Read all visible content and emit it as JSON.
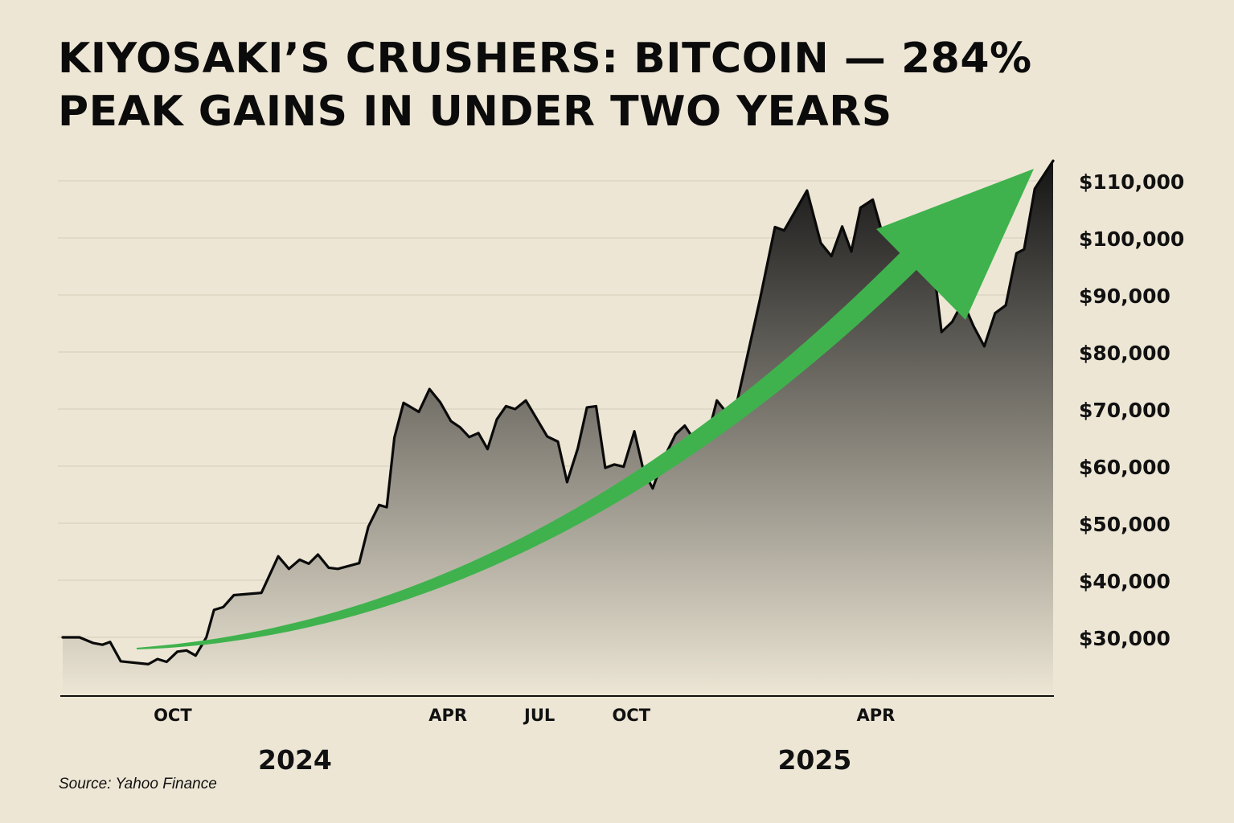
{
  "page": {
    "title_lines": [
      "KIYOSAKI’S CRUSHERS: BITCOIN — 284%",
      "PEAK GAINS IN UNDER TWO YEARS"
    ],
    "source": "Source: Yahoo Finance"
  },
  "colors": {
    "background": "#ede6d5",
    "line": "#0a0a0a",
    "area_top": "#141414",
    "area_bottom": "#ede6d5",
    "arrow": "#3fb24d",
    "gridline": "#d9d1bd"
  },
  "chart_data": {
    "type": "area",
    "title": "KIYOSAKI’S CRUSHERS: BITCOIN — 284% PEAK GAINS IN UNDER TWO YEARS",
    "series": [
      {
        "values": [
          [
            0.0,
            30000
          ],
          [
            0.55,
            30000
          ],
          [
            1.0,
            29000
          ],
          [
            1.3,
            28700
          ],
          [
            1.55,
            29200
          ],
          [
            1.9,
            25800
          ],
          [
            2.8,
            25300
          ],
          [
            3.1,
            26200
          ],
          [
            3.4,
            25700
          ],
          [
            3.75,
            27500
          ],
          [
            4.05,
            27700
          ],
          [
            4.35,
            26800
          ],
          [
            4.7,
            30000
          ],
          [
            4.95,
            34800
          ],
          [
            5.25,
            35300
          ],
          [
            5.6,
            37400
          ],
          [
            6.5,
            37800
          ],
          [
            7.05,
            44200
          ],
          [
            7.4,
            42000
          ],
          [
            7.75,
            43600
          ],
          [
            8.05,
            42900
          ],
          [
            8.35,
            44500
          ],
          [
            8.7,
            42200
          ],
          [
            9.0,
            42000
          ],
          [
            9.7,
            43000
          ],
          [
            10.0,
            49400
          ],
          [
            10.35,
            53200
          ],
          [
            10.6,
            52800
          ],
          [
            10.85,
            65000
          ],
          [
            11.15,
            71100
          ],
          [
            11.65,
            69500
          ],
          [
            12.0,
            73500
          ],
          [
            12.35,
            71200
          ],
          [
            12.7,
            67900
          ],
          [
            13.0,
            66800
          ],
          [
            13.3,
            65100
          ],
          [
            13.6,
            65800
          ],
          [
            13.9,
            63000
          ],
          [
            14.2,
            68200
          ],
          [
            14.5,
            70500
          ],
          [
            14.8,
            70000
          ],
          [
            15.15,
            71500
          ],
          [
            15.85,
            65200
          ],
          [
            16.2,
            64300
          ],
          [
            16.5,
            57200
          ],
          [
            16.85,
            63100
          ],
          [
            17.15,
            70300
          ],
          [
            17.45,
            70500
          ],
          [
            17.75,
            59700
          ],
          [
            18.05,
            60300
          ],
          [
            18.35,
            59900
          ],
          [
            18.7,
            66100
          ],
          [
            19.0,
            59200
          ],
          [
            19.3,
            56100
          ],
          [
            19.65,
            61200
          ],
          [
            20.05,
            65600
          ],
          [
            20.35,
            67100
          ],
          [
            20.7,
            64300
          ],
          [
            21.05,
            64200
          ],
          [
            21.4,
            71500
          ],
          [
            21.7,
            69500
          ],
          [
            22.05,
            71000
          ],
          [
            22.8,
            89000
          ],
          [
            23.3,
            101900
          ],
          [
            23.6,
            101300
          ],
          [
            24.35,
            108300
          ],
          [
            24.8,
            99100
          ],
          [
            25.15,
            96800
          ],
          [
            25.5,
            102000
          ],
          [
            25.8,
            97600
          ],
          [
            26.1,
            105300
          ],
          [
            26.5,
            106700
          ],
          [
            26.8,
            101000
          ],
          [
            27.3,
            99900
          ],
          [
            28.2,
            99500
          ],
          [
            28.45,
            96800
          ],
          [
            28.75,
            83500
          ],
          [
            29.1,
            85300
          ],
          [
            29.45,
            88800
          ],
          [
            29.8,
            84500
          ],
          [
            30.15,
            81000
          ],
          [
            30.5,
            86800
          ],
          [
            30.85,
            88200
          ],
          [
            31.2,
            97300
          ],
          [
            31.45,
            98000
          ],
          [
            31.8,
            108600
          ],
          [
            32.4,
            113500
          ]
        ]
      }
    ],
    "x_axis": {
      "unit": "months since Jul 2023",
      "range": [
        0,
        32.4
      ],
      "ticks": [
        {
          "x": 3.6,
          "label": "OCT"
        },
        {
          "x": 12.6,
          "label": "APR"
        },
        {
          "x": 15.6,
          "label": "JUL"
        },
        {
          "x": 18.6,
          "label": "OCT"
        },
        {
          "x": 26.6,
          "label": "APR"
        }
      ],
      "year_labels": [
        {
          "x": 7.6,
          "label": "2024"
        },
        {
          "x": 24.6,
          "label": "2025"
        }
      ]
    },
    "y_axis": {
      "position": "right",
      "range": [
        20000,
        110000
      ],
      "ticks": [
        {
          "value": 30000,
          "label": "$30,000"
        },
        {
          "value": 40000,
          "label": "$40,000"
        },
        {
          "value": 50000,
          "label": "$50,000"
        },
        {
          "value": 60000,
          "label": "$60,000"
        },
        {
          "value": 70000,
          "label": "$70,000"
        },
        {
          "value": 80000,
          "label": "$80,000"
        },
        {
          "value": 90000,
          "label": "$90,000"
        },
        {
          "value": 100000,
          "label": "$100,000"
        },
        {
          "value": 110000,
          "label": "$110,000"
        }
      ]
    },
    "grid": true,
    "annotation": "upward trend arrow"
  }
}
